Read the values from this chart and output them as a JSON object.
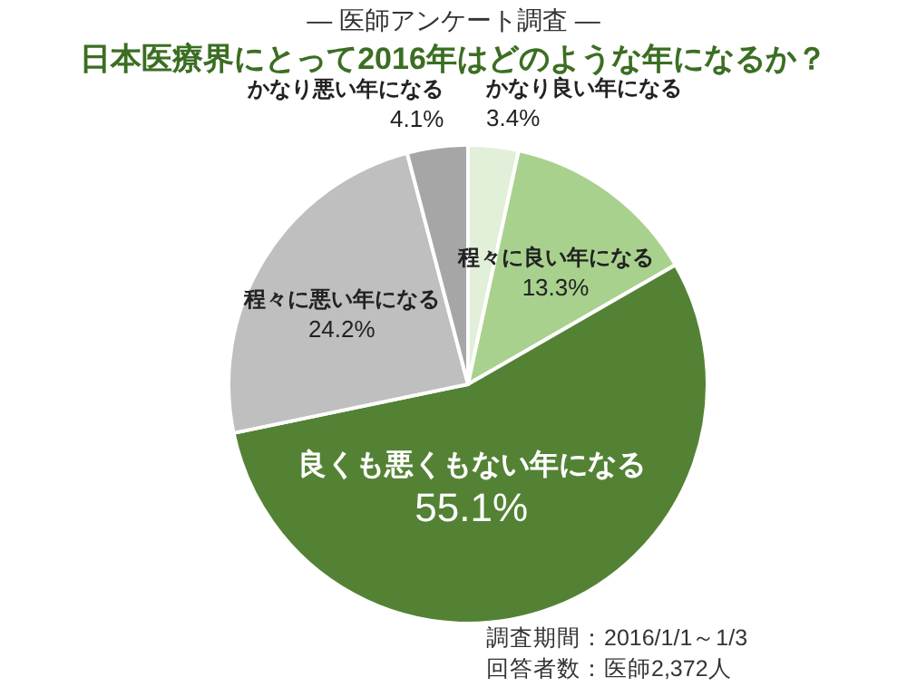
{
  "chart_data": {
    "type": "pie",
    "subtitle": "— 医師アンケート調査 —",
    "title": "日本医療界にとって2016年はどのような年になるか？",
    "categories": [
      "かなり良い年になる",
      "程々に良い年になる",
      "良くも悪くもない年になる",
      "程々に悪い年になる",
      "かなり悪い年になる"
    ],
    "values": [
      3.4,
      13.3,
      55.1,
      24.2,
      4.1
    ],
    "colors": [
      "#e2efd9",
      "#a9d18e",
      "#548235",
      "#bfbfbf",
      "#a6a6a6"
    ],
    "value_labels": [
      "3.4%",
      "13.3%",
      "55.1%",
      "24.2%",
      "4.1%"
    ],
    "annotations": [
      "調査期間：2016/1/1～1/3",
      "回答者数：医師2,372人"
    ]
  }
}
